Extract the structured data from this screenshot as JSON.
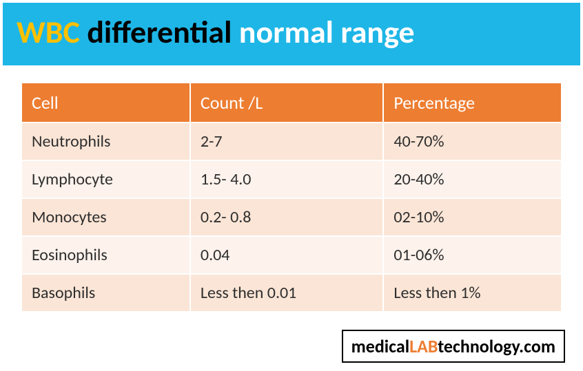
{
  "banner": {
    "background_color": "#1eb6e7",
    "parts": [
      {
        "text": "WBC ",
        "color": "#ffc000"
      },
      {
        "text": "differential",
        "color": "#000000"
      },
      {
        "text": " normal range",
        "color": "#ffffff"
      }
    ]
  },
  "table": {
    "header_bg": "#ed7d31",
    "header_color": "#ffffff",
    "row_odd_bg": "#fbe5d6",
    "row_even_bg": "#fdf2ec",
    "text_color": "#2e2e2e",
    "columns": [
      "Cell",
      "Count /L",
      "Percentage"
    ],
    "rows": [
      [
        "Neutrophils",
        "2-7",
        "40-70%"
      ],
      [
        "Lymphocyte",
        "1.5- 4.0",
        "20-40%"
      ],
      [
        "Monocytes",
        "0.2- 0.8",
        "02-10%"
      ],
      [
        "Eosinophils",
        "0.04",
        "01-06%"
      ],
      [
        "Basophils",
        "Less then 0.01",
        "Less then 1%"
      ]
    ]
  },
  "footer": {
    "parts": [
      {
        "text": "medical",
        "color": "#000000"
      },
      {
        "text": "LAB",
        "color": "#ed7d31"
      },
      {
        "text": "technology.com",
        "color": "#000000"
      }
    ]
  }
}
